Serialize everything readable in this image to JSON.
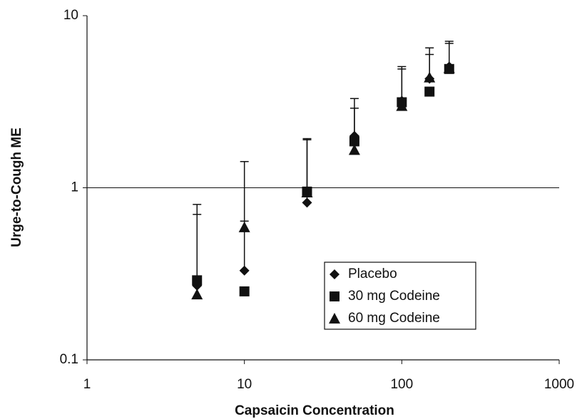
{
  "chart_data": {
    "type": "scatter",
    "x_label": "Capsaicin Concentration",
    "y_label": "Urge-to-Cough ME",
    "x": [
      5,
      10,
      25,
      50,
      100,
      150,
      200
    ],
    "xscale": "log",
    "yscale": "log",
    "xlim": [
      1,
      1000
    ],
    "xticks": [
      1,
      10,
      100,
      1000
    ],
    "ylim": [
      0.1,
      10
    ],
    "yticks": [
      0.1,
      1,
      10
    ],
    "grid_at": [
      1
    ],
    "series": [
      {
        "name": "Placebo",
        "marker": "diamond",
        "color": "#111111",
        "values": [
          0.27,
          0.33,
          0.82,
          2.0,
          3.2,
          4.3,
          5.06
        ],
        "errors": [
          0.53,
          0.31,
          1.08,
          1.3,
          1.86,
          1.65,
          2.04
        ]
      },
      {
        "name": "30 mg Codeine",
        "marker": "square",
        "color": "#111111",
        "values": [
          0.29,
          0.25,
          0.95,
          1.86,
          3.14,
          3.62,
          4.9
        ],
        "errors": [
          0.41,
          null,
          0.98,
          1.04,
          1.76,
          null,
          2.0
        ]
      },
      {
        "name": "60 mg Codeine",
        "marker": "triangle",
        "color": "#111111",
        "values": [
          0.24,
          0.59,
          0.94,
          1.66,
          2.99,
          4.38,
          4.96
        ],
        "errors": [
          null,
          0.83,
          null,
          null,
          null,
          2.12,
          null
        ]
      }
    ]
  }
}
